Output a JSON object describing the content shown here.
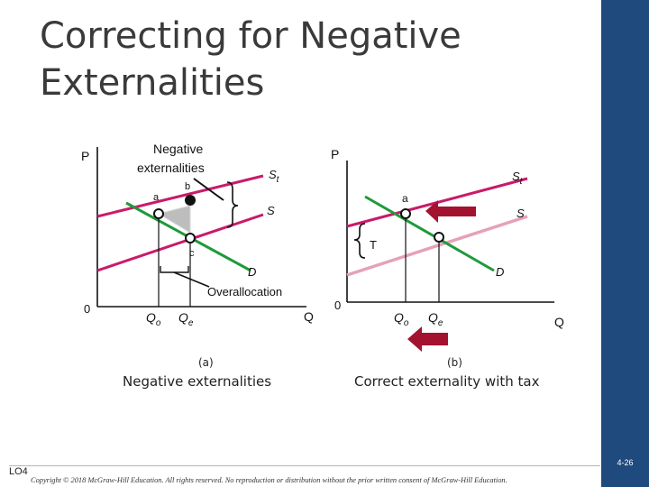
{
  "title": {
    "line1": "Correcting for Negative",
    "line2": "Externalities"
  },
  "panel_a": {
    "y_axis_label": "P",
    "origin": "0",
    "x_axis_label": "Q",
    "callout": "Negative externalities",
    "callout_line1": "Negative",
    "callout_line2": "externalities",
    "point_a": "a",
    "point_b": "b",
    "point_c": "c",
    "supply_label": "S",
    "st_main": "S",
    "st_sub": "t",
    "demand_label": "D",
    "overallocation": "Overallocation",
    "qo_main": "Q",
    "qo_sub": "o",
    "qe_main": "Q",
    "qe_sub": "e",
    "caption_letter": "(a)",
    "caption": "Negative  externalities"
  },
  "panel_b": {
    "y_axis_label": "P",
    "origin": "0",
    "x_axis_label": "Q",
    "point_a": "a",
    "supply_label": "S",
    "st_main": "S",
    "st_sub": "t",
    "tax_label": "T",
    "demand_label": "D",
    "qo_main": "Q",
    "qo_sub": "o",
    "qe_main": "Q",
    "qe_sub": "e",
    "caption_letter": "(b)",
    "caption": "Correct externality with tax"
  },
  "colors": {
    "supply_private": "#c91a6a",
    "supply_social": "#c91a6a",
    "supply_shifted": "#e6a1b5",
    "demand": "#1e9a3a",
    "arrow": "#a3132f",
    "triangle": "#bdbdbd",
    "sidebar": "#1f4a7e"
  },
  "footer": {
    "lo": "LO4",
    "copyright": "Copyright © 2018 McGraw-Hill Education. All rights reserved. No reproduction or distribution without the prior written consent of McGraw-Hill Education.",
    "page": "4-26"
  }
}
